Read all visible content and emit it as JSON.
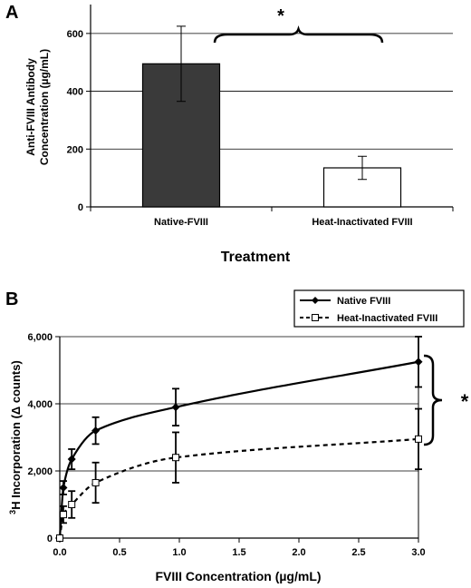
{
  "chart_data": [
    {
      "type": "bar",
      "panel_label": "A",
      "ylabel_line1": "Anti-FVIII Antibody",
      "ylabel_line2": "Concentration (µg/mL)",
      "xlabel": "Treatment",
      "ylim": [
        0,
        700
      ],
      "yticks": [
        0,
        200,
        400,
        600
      ],
      "ytick_labels": [
        "0",
        "200",
        "400",
        "600"
      ],
      "grid": true,
      "categories": [
        "Native-FVIII",
        "Heat-Inactivated FVIII"
      ],
      "values": [
        495,
        135
      ],
      "errors": [
        130,
        40
      ],
      "bar_colors": [
        "#3a3a3a",
        "#ffffff"
      ],
      "significance_marker": "*"
    },
    {
      "type": "line",
      "panel_label": "B",
      "ylabel": "³H Incorporation (Δ counts)",
      "ylabel_parts": [
        "3",
        "H Incorporation (",
        "Δ",
        " counts)"
      ],
      "xlabel": "FVIII Concentration (µg/mL)",
      "xlim": [
        0,
        3
      ],
      "ylim": [
        0,
        6000
      ],
      "xticks": [
        0,
        0.5,
        1,
        1.5,
        2,
        2.5,
        3
      ],
      "xtick_labels": [
        "0.0",
        "0.5",
        "1.0",
        "1.5",
        "2.0",
        "2.5",
        "3.0"
      ],
      "yticks": [
        0,
        2000,
        4000,
        6000
      ],
      "ytick_labels": [
        "0",
        "2,000",
        "4,000",
        "6,000"
      ],
      "grid": true,
      "legend_position": "top-right",
      "series": [
        {
          "name": "Native FVIII",
          "marker": "diamond",
          "line_style": "solid",
          "color": "#000000",
          "x": [
            0,
            0.03,
            0.1,
            0.3,
            0.97,
            3.0
          ],
          "y": [
            0,
            1500,
            2350,
            3200,
            3900,
            5250
          ],
          "errors": [
            0,
            200,
            300,
            400,
            550,
            750
          ]
        },
        {
          "name": "Heat-Inactivated FVIII",
          "marker": "square-open",
          "line_style": "dashed",
          "color": "#000000",
          "x": [
            0,
            0.03,
            0.1,
            0.3,
            0.97,
            3.0
          ],
          "y": [
            0,
            700,
            1000,
            1650,
            2400,
            2950
          ],
          "errors": [
            0,
            250,
            400,
            600,
            750,
            900
          ]
        }
      ],
      "significance_marker": "*"
    }
  ]
}
